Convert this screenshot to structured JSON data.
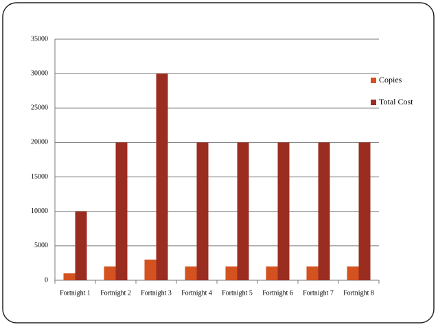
{
  "chart_data": {
    "type": "bar",
    "categories": [
      "Fortnight 1",
      "Fortnight 2",
      "Fortnight 3",
      "Fortnight 4",
      "Fortnight 5",
      "Fortnight 6",
      "Fortnight 7",
      "Fortnight 8"
    ],
    "series": [
      {
        "name": "Copies",
        "color": "#d4521f",
        "values": [
          1000,
          2000,
          3000,
          2000,
          2000,
          2000,
          2000,
          2000
        ]
      },
      {
        "name": "Total Cost",
        "color": "#9b2d20",
        "values": [
          10000,
          20000,
          30000,
          20000,
          20000,
          20000,
          20000,
          20000
        ]
      }
    ],
    "ylim": [
      0,
      35000
    ],
    "yticks": [
      0,
      5000,
      10000,
      15000,
      20000,
      25000,
      30000,
      35000
    ],
    "grid": true,
    "legend": "right"
  }
}
